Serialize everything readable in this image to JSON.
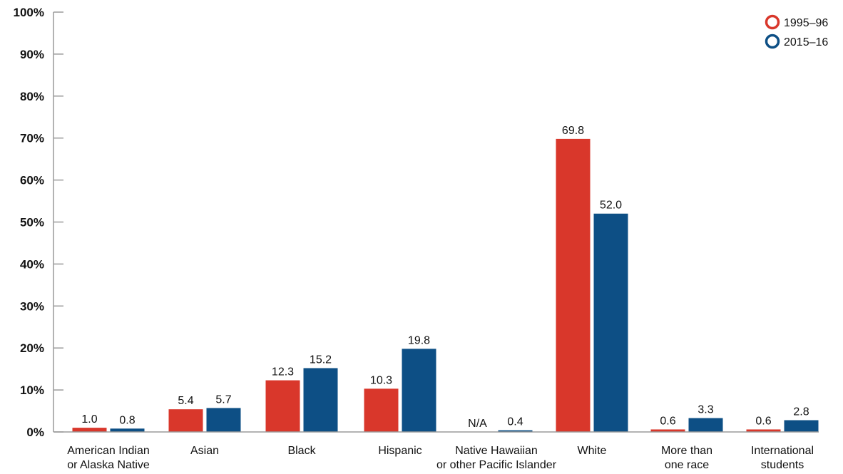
{
  "chart_data": {
    "type": "bar",
    "categories": [
      [
        "American Indian",
        "or Alaska Native"
      ],
      [
        "Asian"
      ],
      [
        "Black"
      ],
      [
        "Hispanic"
      ],
      [
        "Native Hawaiian",
        "or other Pacific Islander"
      ],
      [
        "White"
      ],
      [
        "More than",
        "one race"
      ],
      [
        "International",
        "students"
      ]
    ],
    "series": [
      {
        "name": "1995–96",
        "color": "#d9372b",
        "values": [
          1.0,
          5.4,
          12.3,
          10.3,
          null,
          69.8,
          0.6,
          0.6
        ],
        "labels": [
          "1.0",
          "5.4",
          "12.3",
          "10.3",
          "N/A",
          "69.8",
          "0.6",
          "0.6"
        ]
      },
      {
        "name": "2015–16",
        "color": "#0d4f85",
        "values": [
          0.8,
          5.7,
          15.2,
          19.8,
          0.4,
          52.0,
          3.3,
          2.8
        ],
        "labels": [
          "0.8",
          "5.7",
          "15.2",
          "19.8",
          "0.4",
          "52.0",
          "3.3",
          "2.8"
        ]
      }
    ],
    "ylim": [
      0,
      100
    ],
    "yticks": [
      "0%",
      "10%",
      "20%",
      "30%",
      "40%",
      "50%",
      "60%",
      "70%",
      "80%",
      "90%",
      "100%"
    ],
    "grid": false,
    "legend_position": "top-right",
    "title": "",
    "xlabel": "",
    "ylabel": ""
  }
}
